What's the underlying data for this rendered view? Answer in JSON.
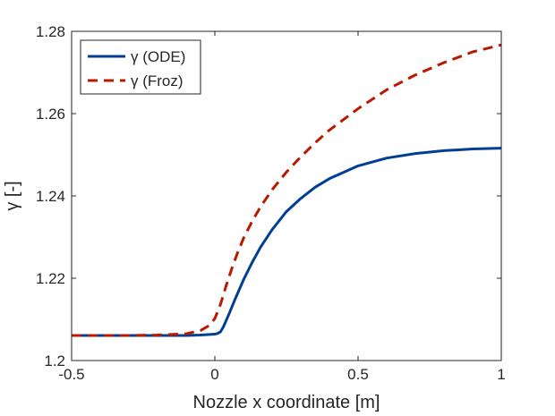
{
  "chart_data": {
    "type": "line",
    "title": "",
    "xlabel": "Nozzle x coordinate [m]",
    "ylabel": "γ [-]",
    "xlim": [
      -0.5,
      1
    ],
    "ylim": [
      1.2,
      1.28
    ],
    "x_ticks": [
      -0.5,
      0,
      0.5,
      1
    ],
    "x_tick_labels": [
      "-0.5",
      "0",
      "0.5",
      "1"
    ],
    "y_ticks": [
      1.2,
      1.22,
      1.24,
      1.26,
      1.28
    ],
    "y_tick_labels": [
      "1.2",
      "1.22",
      "1.24",
      "1.26",
      "1.28"
    ],
    "grid": false,
    "legend_position": "top-left",
    "series": [
      {
        "name": "γ (ODE)",
        "color": "#003f94",
        "style": "solid",
        "x": [
          -0.5,
          -0.4,
          -0.3,
          -0.2,
          -0.1,
          -0.05,
          0.0,
          0.01,
          0.02,
          0.03,
          0.04,
          0.05,
          0.07,
          0.1,
          0.13,
          0.16,
          0.2,
          0.25,
          0.3,
          0.35,
          0.4,
          0.5,
          0.6,
          0.7,
          0.8,
          0.9,
          1.0
        ],
        "y": [
          1.2061,
          1.2061,
          1.2061,
          1.2061,
          1.2061,
          1.2062,
          1.2064,
          1.2066,
          1.207,
          1.2082,
          1.2098,
          1.2114,
          1.2148,
          1.2196,
          1.2238,
          1.2276,
          1.2318,
          1.2362,
          1.2394,
          1.2421,
          1.2442,
          1.2473,
          1.2492,
          1.2503,
          1.251,
          1.2514,
          1.2516
        ]
      },
      {
        "name": "γ (Froz)",
        "color": "#b81a00",
        "style": "dashed",
        "x": [
          -0.5,
          -0.4,
          -0.3,
          -0.2,
          -0.1,
          -0.05,
          -0.02,
          0.0,
          0.02,
          0.04,
          0.06,
          0.08,
          0.1,
          0.13,
          0.16,
          0.2,
          0.25,
          0.3,
          0.35,
          0.4,
          0.45,
          0.5,
          0.6,
          0.7,
          0.8,
          0.9,
          1.0
        ],
        "y": [
          1.2061,
          1.2061,
          1.2061,
          1.2062,
          1.2065,
          1.2073,
          1.2085,
          1.2102,
          1.2137,
          1.2183,
          1.2225,
          1.2263,
          1.2297,
          1.2338,
          1.2374,
          1.2415,
          1.2458,
          1.2495,
          1.2529,
          1.256,
          1.2586,
          1.2612,
          1.2658,
          1.2694,
          1.2724,
          1.275,
          1.2767
        ]
      }
    ]
  }
}
